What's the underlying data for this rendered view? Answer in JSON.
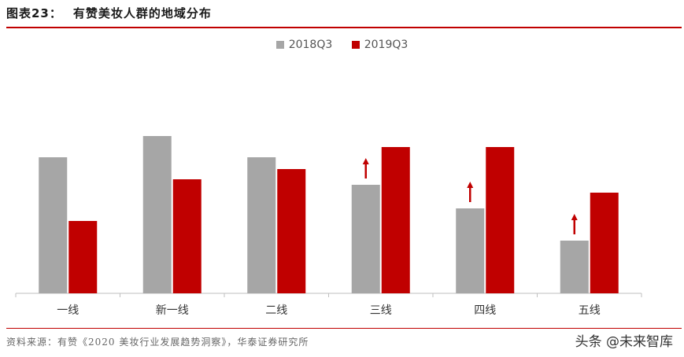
{
  "header": {
    "figure_number": "图表23：",
    "title": "有赞美妆人群的地域分布"
  },
  "colors": {
    "series_2018": "#a6a6a6",
    "series_2019": "#c00000",
    "arrow": "#c00000",
    "rule": "#c00000"
  },
  "chart_data": {
    "type": "bar",
    "title": "有赞美妆人群的地域分布",
    "categories": [
      "一线",
      "新一线",
      "二线",
      "三线",
      "四线",
      "五线"
    ],
    "series": [
      {
        "name": "2018Q3",
        "values": [
          173,
          200,
          173,
          138,
          108,
          67
        ]
      },
      {
        "name": "2019Q3",
        "values": [
          92,
          145,
          158,
          186,
          186,
          128
        ]
      }
    ],
    "arrows_on_categories": [
      "三线",
      "四线",
      "五线"
    ],
    "xlabel": "",
    "ylabel": "",
    "ylim": [
      0,
      230
    ],
    "y_axis_shown": false,
    "grid": false,
    "legend_position": "top-center"
  },
  "footer": {
    "source": "资料来源：有赞《2020 美妆行业发展趋势洞察》，华泰证券研究所",
    "watermark": "头条 @未来智库"
  }
}
